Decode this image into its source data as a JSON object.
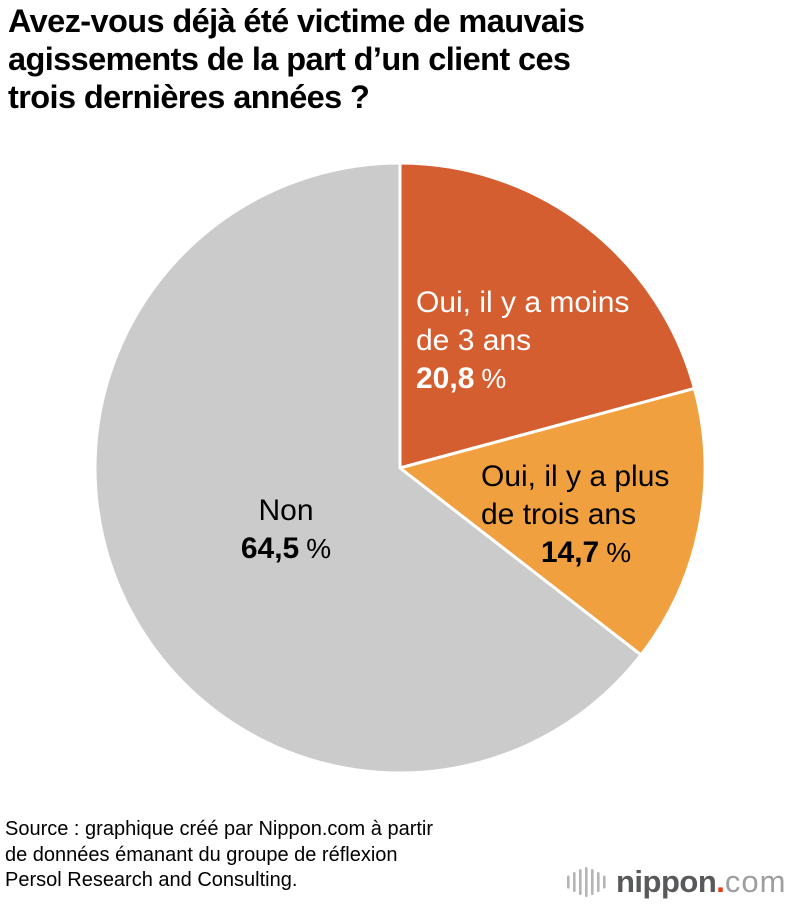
{
  "title": {
    "full": "Avez-vous déjà été victime de mauvais agissements de la part d’un client ces trois dernières années ?",
    "lines": [
      "Avez-vous déjà été victime de mauvais",
      "agissements de la part d’un client ces",
      "trois dernières années ?"
    ]
  },
  "chart_data": {
    "type": "pie",
    "title": "Avez-vous déjà été victime de mauvais agissements de la part d’un client ces trois dernières années ?",
    "unit": "%",
    "start_angle_deg": 0,
    "direction": "clockwise",
    "slice_border_color": "#ffffff",
    "legend_position": "labels-on-slices",
    "slices": [
      {
        "label": "Oui, il y a moins de 3 ans",
        "label_lines": [
          "Oui, il y a moins",
          "de 3 ans"
        ],
        "value": 20.8,
        "value_label": "20,8",
        "color": "#d55e31",
        "label_color": "#ffffff"
      },
      {
        "label": "Oui, il y a plus de trois ans",
        "label_lines": [
          "Oui, il y a plus",
          "de trois ans"
        ],
        "value": 14.7,
        "value_label": "14,7",
        "color": "#f0a03e",
        "label_color": "#000000"
      },
      {
        "label": "Non",
        "label_lines": [
          "Non"
        ],
        "value": 64.5,
        "value_label": "64,5",
        "color": "#cbcbcb",
        "label_color": "#000000"
      }
    ]
  },
  "source": {
    "full": "Source : graphique créé par Nippon.com à partir de données émanant du groupe de réflexion Persol Research and Consulting.",
    "lines": [
      "Source : graphique créé par Nippon.com à partir",
      "de données émanant du groupe de réflexion",
      "Persol Research and Consulting."
    ]
  },
  "logo": {
    "icon": "soundwave-icon",
    "name": "nippon",
    "dot": ".",
    "tld": "com",
    "colors": {
      "name": "#58595b",
      "dot": "#e8380d",
      "tld": "#9d9ea0",
      "bars": "#b5b5b5"
    }
  }
}
